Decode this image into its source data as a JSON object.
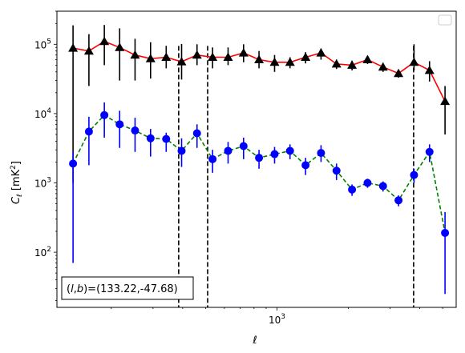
{
  "chart_data": {
    "type": "line",
    "xlabel": "ℓ",
    "ylabel": "C_ℓ  [mK²]",
    "xscale": "log",
    "yscale": "log",
    "xlim": [
      118,
      5700
    ],
    "ylim": [
      16,
      300000
    ],
    "x_tick_labels": [
      {
        "value": 1000,
        "label": "10",
        "exp": "3"
      }
    ],
    "y_tick_labels": [
      {
        "value": 100,
        "label": "10",
        "exp": "2"
      },
      {
        "value": 1000,
        "label": "10",
        "exp": "3"
      },
      {
        "value": 10000,
        "label": "10",
        "exp": "4"
      },
      {
        "value": 100000,
        "label": "10",
        "exp": "5"
      }
    ],
    "grid": false,
    "legend": "top-right, empty",
    "annotation": "(l,b)=(133.22,-47.68)",
    "vlines": [
      385,
      510,
      3770
    ],
    "series": [
      {
        "color": "#ff0000",
        "marker": "triangle",
        "marker_color": "#000000",
        "x": [
          138,
          161,
          187,
          217,
          252,
          293,
          341,
          396,
          460,
          535,
          622,
          723,
          840,
          977,
          1135,
          1320,
          1534,
          1783,
          2073,
          2410,
          2801,
          3256,
          3785,
          4400,
          5115
        ],
        "y": [
          88000,
          80000,
          110000,
          90000,
          70000,
          62000,
          65000,
          56000,
          70000,
          65000,
          65000,
          75000,
          60000,
          55000,
          55000,
          65000,
          75000,
          52000,
          50000,
          60000,
          47000,
          38000,
          55000,
          42000,
          15000
        ],
        "err_low": [
          87000,
          55000,
          60000,
          60000,
          40000,
          30000,
          20000,
          25000,
          20000,
          20000,
          15000,
          20000,
          15000,
          15000,
          10000,
          12000,
          15000,
          8000,
          8000,
          8000,
          7000,
          5000,
          13000,
          13000,
          10000
        ],
        "err_high": [
          100000,
          60000,
          80000,
          80000,
          50000,
          45000,
          30000,
          45000,
          30000,
          25000,
          25000,
          25000,
          20000,
          15000,
          10000,
          12000,
          12000,
          8000,
          8000,
          8000,
          7000,
          5000,
          45000,
          15000,
          10000
        ]
      },
      {
        "color": "#008000",
        "linestyle": "dashed",
        "marker": "circle",
        "marker_color": "#0000ff",
        "x": [
          138,
          161,
          187,
          217,
          252,
          293,
          341,
          396,
          460,
          535,
          622,
          723,
          840,
          977,
          1135,
          1320,
          1534,
          1783,
          2073,
          2410,
          2801,
          3256,
          3785,
          4400,
          5115
        ],
        "y": [
          1900,
          5500,
          9500,
          7000,
          5700,
          4400,
          4300,
          2900,
          5200,
          2200,
          2900,
          3400,
          2300,
          2600,
          2900,
          1800,
          2700,
          1500,
          800,
          1000,
          900,
          560,
          1300,
          2800,
          190
        ],
        "err_low": [
          1830,
          3700,
          5000,
          3800,
          2900,
          2000,
          1500,
          1200,
          2000,
          800,
          1000,
          1200,
          700,
          700,
          700,
          500,
          700,
          400,
          150,
          150,
          150,
          100,
          300,
          800,
          165
        ],
        "err_high": [
          900,
          3500,
          5000,
          4000,
          3000,
          1600,
          1000,
          1500,
          1800,
          800,
          1000,
          1100,
          700,
          700,
          700,
          500,
          800,
          400,
          150,
          150,
          150,
          100,
          300,
          800,
          190
        ]
      }
    ]
  }
}
